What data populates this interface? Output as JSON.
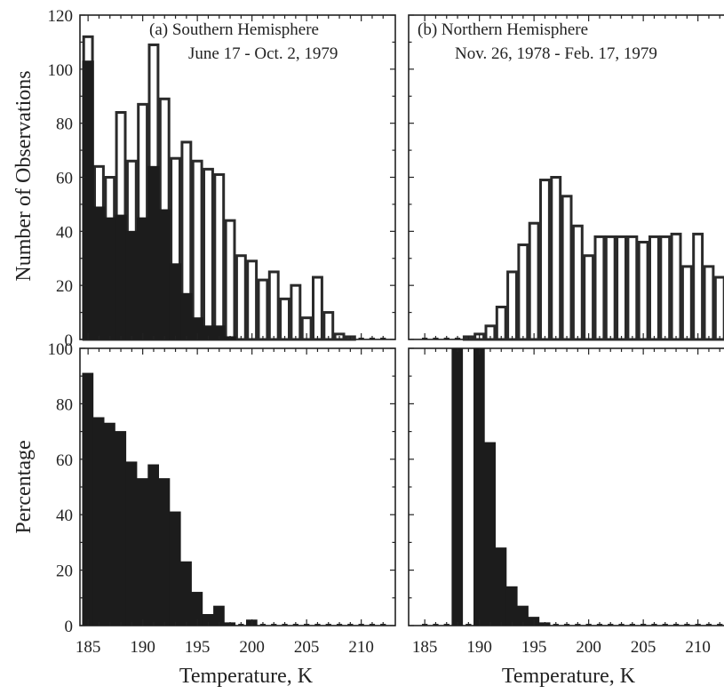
{
  "chart_data": {
    "type": "bar",
    "xlabel": "Temperature,  K",
    "x_ticks": [
      185,
      190,
      195,
      200,
      205,
      210
    ],
    "bins": [
      185,
      186,
      187,
      188,
      189,
      190,
      191,
      192,
      193,
      194,
      195,
      196,
      197,
      198,
      199,
      200,
      201,
      202,
      203,
      204,
      205,
      206,
      207,
      208,
      209,
      210,
      211,
      212
    ],
    "ylabel_top": "Number  of  Observations",
    "ylabel_bottom": "Percentage",
    "ylim_top": [
      0,
      120
    ],
    "ylim_bottom": [
      0,
      100
    ],
    "y_ticks_top": [
      0,
      20,
      40,
      60,
      80,
      100,
      120
    ],
    "y_ticks_bottom": [
      0,
      20,
      40,
      60,
      80,
      100
    ],
    "panels": [
      {
        "label": "(a)  Southern  Hemisphere",
        "dates": "June 17  -  Oct. 2, 1979",
        "observations_total": [
          112,
          64,
          60,
          84,
          66,
          87,
          109,
          89,
          67,
          73,
          66,
          63,
          61,
          44,
          31,
          29,
          22,
          25,
          15,
          20,
          8,
          23,
          10,
          2,
          1,
          0,
          0,
          0
        ],
        "observations_filled": [
          103,
          49,
          45,
          46,
          40,
          45,
          64,
          48,
          28,
          17,
          8,
          5,
          5,
          1,
          0,
          0,
          0,
          0,
          0,
          0,
          0,
          0,
          0,
          0,
          0,
          0,
          0,
          0
        ],
        "percentage": [
          91,
          75,
          73,
          70,
          59,
          53,
          58,
          53,
          41,
          23,
          12,
          4,
          7,
          1,
          0,
          2,
          0,
          0,
          0,
          0,
          0,
          0,
          0,
          0,
          0,
          0,
          0,
          0
        ]
      },
      {
        "label": "(b)  Northern  Hemisphere",
        "dates": "Nov. 26, 1978  -  Feb. 17, 1979",
        "observations_total": [
          0,
          0,
          0,
          0,
          1,
          2,
          5,
          12,
          25,
          35,
          43,
          59,
          60,
          53,
          42,
          31,
          38,
          38,
          38,
          38,
          36,
          38,
          38,
          39,
          27,
          39,
          27,
          23
        ],
        "observations_filled": [
          0,
          0,
          0,
          0,
          0,
          0,
          0,
          0,
          0,
          0,
          0,
          0,
          0,
          0,
          0,
          0,
          0,
          0,
          0,
          0,
          0,
          0,
          0,
          0,
          0,
          0,
          0,
          0
        ],
        "percentage": [
          0,
          0,
          0,
          100,
          0,
          100,
          66,
          28,
          14,
          7,
          3,
          1,
          0,
          0,
          0,
          0,
          0,
          0,
          0,
          0,
          0,
          0,
          0,
          0,
          0,
          0,
          0,
          0
        ]
      }
    ]
  }
}
